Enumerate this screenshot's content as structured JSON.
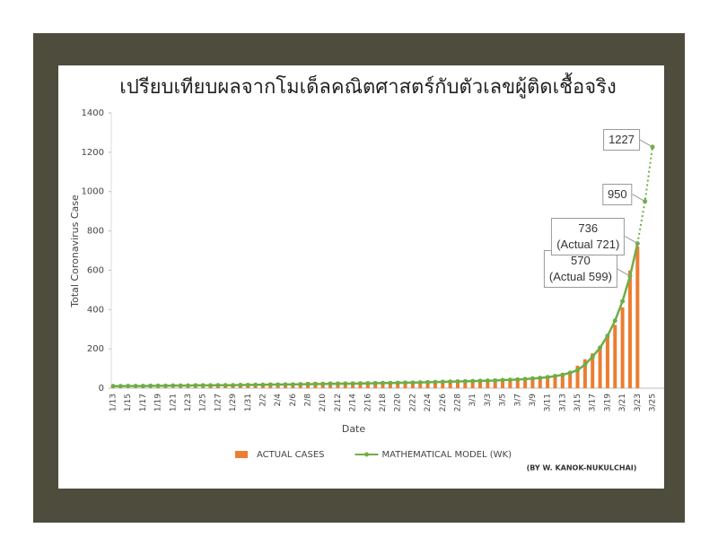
{
  "chart_data": {
    "type": "bar-line",
    "title": "เปรียบเทียบผลจากโมเด็ลคณิตศาสตร์กับตัวเลขผู้ติดเชื้อจริง",
    "x_label": "Date",
    "y_label": "Total Coronavirus Case",
    "credit": "(BY W. KANOK-NUKULCHAI)",
    "categories": [
      "1/13",
      null,
      "1/15",
      null,
      "1/17",
      null,
      "1/19",
      null,
      "1/21",
      null,
      "1/23",
      null,
      "1/25",
      null,
      "1/27",
      null,
      "1/29",
      null,
      "1/31",
      null,
      "2/2",
      null,
      "2/4",
      null,
      "2/6",
      null,
      "2/8",
      null,
      "2/10",
      null,
      "2/12",
      null,
      "2/14",
      null,
      "2/16",
      null,
      "2/18",
      null,
      "2/20",
      null,
      "2/22",
      null,
      "2/24",
      null,
      "2/26",
      null,
      "2/28",
      null,
      "3/1",
      null,
      "3/3",
      null,
      "3/5",
      null,
      "3/7",
      null,
      "3/9",
      null,
      "3/11",
      null,
      "3/13",
      null,
      "3/15",
      null,
      "3/17",
      null,
      "3/19",
      null,
      "3/21",
      null,
      "3/23",
      null,
      "3/25"
    ],
    "series": [
      {
        "name": "ACTUAL CASES",
        "type": "bar",
        "color": "#ed7d31",
        "values": [
          1,
          1,
          1,
          1,
          2,
          2,
          2,
          2,
          2,
          4,
          4,
          5,
          5,
          8,
          8,
          14,
          14,
          14,
          19,
          19,
          19,
          19,
          25,
          25,
          25,
          25,
          32,
          32,
          32,
          33,
          33,
          33,
          34,
          34,
          35,
          35,
          35,
          35,
          35,
          35,
          35,
          35,
          37,
          37,
          40,
          41,
          42,
          42,
          42,
          42,
          43,
          43,
          47,
          48,
          50,
          50,
          50,
          53,
          59,
          70,
          75,
          82,
          114,
          147,
          177,
          212,
          272,
          322,
          411,
          599,
          721,
          null,
          null
        ]
      },
      {
        "name": "MATHEMATICAL MODEL (WK)",
        "type": "line",
        "color": "#70ad47",
        "values": [
          10,
          10,
          11,
          11,
          11,
          12,
          12,
          12,
          13,
          13,
          13,
          14,
          14,
          14,
          15,
          15,
          15,
          16,
          16,
          17,
          17,
          18,
          18,
          19,
          19,
          20,
          20,
          21,
          21,
          22,
          22,
          23,
          23,
          24,
          24,
          25,
          26,
          26,
          27,
          28,
          28,
          29,
          30,
          31,
          32,
          33,
          34,
          35,
          36,
          37,
          38,
          39,
          41,
          42,
          44,
          46,
          49,
          52,
          56,
          61,
          68,
          78,
          92,
          120,
          160,
          206,
          266,
          343,
          442,
          570,
          736,
          950,
          1227
        ],
        "value_labels": [
          null,
          null,
          null,
          null,
          null,
          null,
          null,
          null,
          null,
          null,
          null,
          null,
          null,
          null,
          null,
          null,
          null,
          null,
          null,
          null,
          null,
          null,
          null,
          null,
          null,
          null,
          null,
          null,
          null,
          null,
          null,
          null,
          null,
          null,
          null,
          null,
          null,
          null,
          null,
          null,
          null,
          null,
          null,
          null,
          null,
          null,
          null,
          null,
          null,
          null,
          null,
          null,
          null,
          null,
          null,
          null,
          null,
          null,
          null,
          null,
          null,
          null,
          null,
          null,
          null,
          null,
          null,
          null,
          null,
          "570\n(Actual 599)",
          "736\n(Actual 721)",
          "950",
          "1227"
        ]
      }
    ],
    "ylim": [
      0,
      1400
    ],
    "yticks": [
      0,
      200,
      400,
      600,
      800,
      1000,
      1200,
      1400
    ],
    "grid": false,
    "legend": "bottom"
  }
}
